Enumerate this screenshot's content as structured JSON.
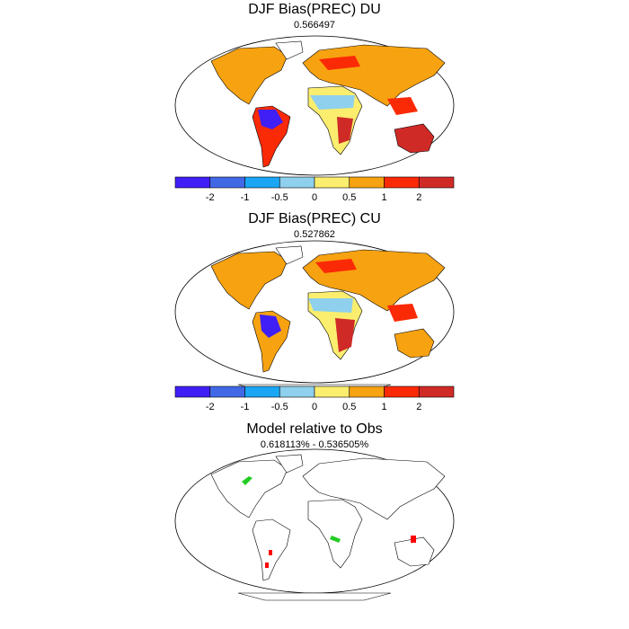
{
  "panels": [
    {
      "title": "DJF Bias(PREC) DU",
      "subtitle": "0.566497"
    },
    {
      "title": "DJF Bias(PREC) CU",
      "subtitle": "0.527862"
    },
    {
      "title": "Model relative to Obs",
      "subtitle": "0.618113% - 0.536505%"
    }
  ],
  "colorbar": {
    "colors": [
      "#3f1ff5",
      "#4169e6",
      "#1aa6f5",
      "#8ed0ee",
      "#fbee6e",
      "#f7a210",
      "#fb2a06",
      "#d02a27"
    ],
    "tick_labels": [
      "-2",
      "-1",
      "-0.5",
      "0",
      "0.5",
      "1",
      "2"
    ]
  },
  "chart_data": [
    {
      "type": "heatmap",
      "title": "DJF Bias(PREC) DU",
      "subtitle": "0.566497",
      "levels": [
        -2,
        -1,
        -0.5,
        0,
        0.5,
        1,
        2
      ]
    },
    {
      "type": "heatmap",
      "title": "DJF Bias(PREC) CU",
      "subtitle": "0.527862",
      "levels": [
        -2,
        -1,
        -0.5,
        0,
        0.5,
        1,
        2
      ]
    },
    {
      "type": "heatmap",
      "title": "Model relative to Obs",
      "subtitle": "0.618113% - 0.536505%"
    }
  ]
}
